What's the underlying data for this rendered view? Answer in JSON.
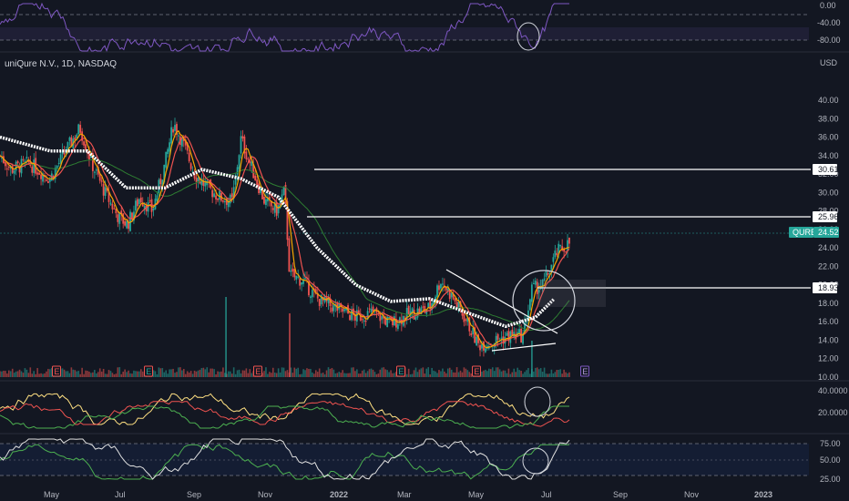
{
  "title": "uniQure N.V., 1D, NASDAQ",
  "currency": "USD",
  "symbol_tag": "QURE",
  "last_price": "24.52",
  "levels": [
    "30.61",
    "25.96",
    "18.93"
  ],
  "months": [
    "May",
    "Jul",
    "Sep",
    "Nov",
    "2022",
    "Mar",
    "May",
    "Jul",
    "Sep",
    "Nov",
    "2023"
  ],
  "event_marker": "E",
  "rsi_ticks": [
    "0.00",
    "-40.00",
    "-80.00"
  ],
  "price_ticks": [
    "40.00",
    "38.00",
    "36.00",
    "34.00",
    "32.00",
    "30.00",
    "28.00",
    "26.00",
    "24.00",
    "22.00",
    "20.00",
    "18.00",
    "16.00",
    "14.00",
    "12.00",
    "10.00"
  ],
  "adx_ticks": [
    "40.0000",
    "20.0000"
  ],
  "stoch_ticks": [
    "75.00",
    "50.00",
    "25.00"
  ],
  "colors": {
    "bg": "#131722",
    "up": "#26a69a",
    "down": "#ef5350",
    "sma_fast": "#f7a600",
    "sma_mid": "#ef5350",
    "sma_slow": "#1b5e20",
    "white": "#ffffff",
    "rsi": "#7e57c2",
    "grid": "#1e222d",
    "tag": "#26a69a"
  },
  "chart_data": [
    {
      "type": "candlestick",
      "title": "uniQure N.V., 1D, NASDAQ",
      "ylabel": "USD",
      "ylim": [
        10,
        42
      ],
      "x_labels": [
        "May",
        "Jul",
        "Sep",
        "Nov",
        "2022",
        "Mar",
        "May",
        "Jul",
        "Sep",
        "Nov",
        "2023"
      ],
      "close_path": [
        [
          "2021-04-22",
          34.0
        ],
        [
          "2021-05-01",
          32.5
        ],
        [
          "2021-05-15",
          33.2
        ],
        [
          "2021-06-01",
          31.5
        ],
        [
          "2021-06-15",
          34.8
        ],
        [
          "2021-06-25",
          37.0
        ],
        [
          "2021-07-05",
          33.0
        ],
        [
          "2021-07-15",
          30.0
        ],
        [
          "2021-07-25",
          27.5
        ],
        [
          "2021-08-02",
          26.5
        ],
        [
          "2021-08-12",
          29.5
        ],
        [
          "2021-08-22",
          28.0
        ],
        [
          "2021-09-01",
          33.0
        ],
        [
          "2021-09-08",
          37.5
        ],
        [
          "2021-09-15",
          35.5
        ],
        [
          "2021-09-25",
          32.0
        ],
        [
          "2021-10-05",
          30.5
        ],
        [
          "2021-10-15",
          29.5
        ],
        [
          "2021-10-25",
          29.0
        ],
        [
          "2021-11-01",
          35.8
        ],
        [
          "2021-11-10",
          32.5
        ],
        [
          "2021-11-20",
          29.0
        ],
        [
          "2021-11-30",
          28.0
        ],
        [
          "2021-12-06",
          30.3
        ],
        [
          "2021-12-10",
          21.0
        ],
        [
          "2021-12-20",
          20.5
        ],
        [
          "2022-01-01",
          18.5
        ],
        [
          "2022-01-15",
          17.5
        ],
        [
          "2022-02-01",
          16.5
        ],
        [
          "2022-02-15",
          17.0
        ],
        [
          "2022-03-01",
          15.8
        ],
        [
          "2022-03-15",
          16.8
        ],
        [
          "2022-04-01",
          17.5
        ],
        [
          "2022-04-10",
          20.5
        ],
        [
          "2022-04-20",
          18.5
        ],
        [
          "2022-05-01",
          16.0
        ],
        [
          "2022-05-10",
          13.5
        ],
        [
          "2022-05-25",
          14.0
        ],
        [
          "2022-06-05",
          14.5
        ],
        [
          "2022-06-15",
          14.5
        ],
        [
          "2022-06-22",
          19.5
        ],
        [
          "2022-07-01",
          20.0
        ],
        [
          "2022-07-12",
          23.5
        ],
        [
          "2022-07-22",
          24.52
        ]
      ],
      "moving_average_white": [
        [
          "2021-04-22",
          36.0
        ],
        [
          "2021-06-01",
          34.5
        ],
        [
          "2021-07-01",
          34.5
        ],
        [
          "2021-08-01",
          30.5
        ],
        [
          "2021-09-01",
          30.5
        ],
        [
          "2021-10-01",
          32.5
        ],
        [
          "2021-11-01",
          31.5
        ],
        [
          "2021-12-01",
          29.5
        ],
        [
          "2022-01-01",
          24.0
        ],
        [
          "2022-02-01",
          20.0
        ],
        [
          "2022-03-01",
          18.2
        ],
        [
          "2022-04-01",
          18.5
        ],
        [
          "2022-05-01",
          17.0
        ],
        [
          "2022-06-01",
          15.5
        ],
        [
          "2022-06-25",
          16.5
        ],
        [
          "2022-07-10",
          18.5
        ]
      ],
      "horizontal_levels": [
        30.61,
        25.96,
        18.93
      ],
      "last_price": 24.52,
      "volume_spikes": [
        [
          "2021-10-20",
          "large"
        ],
        [
          "2021-12-10",
          "large"
        ],
        [
          "2022-06-22",
          "large"
        ]
      ]
    },
    {
      "type": "line",
      "title": "",
      "ylim": [
        -100,
        0
      ],
      "ticks": [
        0,
        -40,
        -80
      ],
      "series": [
        {
          "values_shape": "oscillating between -90 and 0"
        }
      ]
    },
    {
      "type": "line",
      "ticks": [
        40,
        20
      ],
      "series_count": 3
    },
    {
      "type": "line",
      "ticks": [
        75,
        50,
        25
      ],
      "series_count": 2
    }
  ]
}
